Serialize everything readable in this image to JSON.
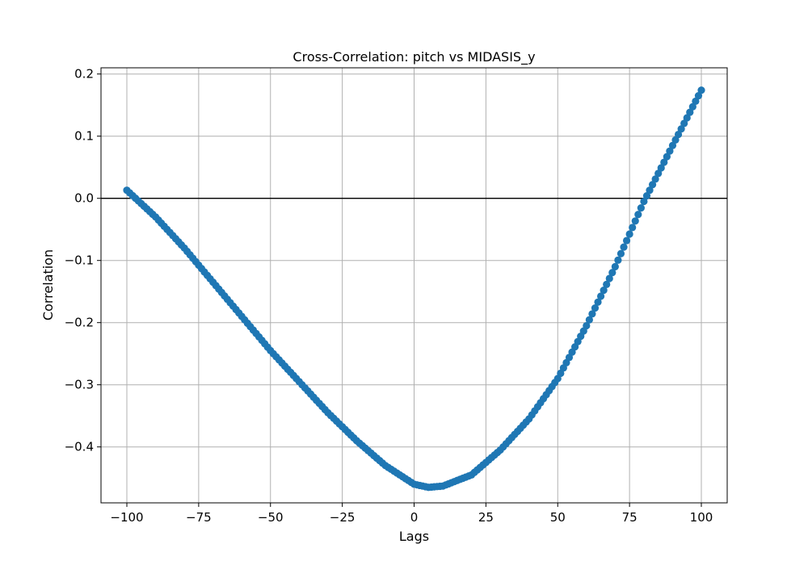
{
  "chart_data": {
    "type": "scatter",
    "title": "Cross-Correlation: pitch vs MIDASIS_y",
    "xlabel": "Lags",
    "ylabel": "Correlation",
    "xlim": [
      -109,
      109
    ],
    "ylim": [
      -0.49,
      0.21
    ],
    "xticks": [
      -100,
      -75,
      -50,
      -25,
      0,
      25,
      50,
      75,
      100
    ],
    "xtick_labels": [
      "−100",
      "−75",
      "−50",
      "−25",
      "0",
      "25",
      "50",
      "75",
      "100"
    ],
    "yticks": [
      -0.4,
      -0.3,
      -0.2,
      -0.1,
      0.0,
      0.1,
      0.2
    ],
    "ytick_labels": [
      "−0.4",
      "−0.3",
      "−0.2",
      "−0.1",
      "0.0",
      "0.1",
      "0.2"
    ],
    "grid": true,
    "reference_line_y": 0,
    "marker_color": "#1f77b4",
    "reference_line_color": "#000000",
    "series": [
      {
        "x_start": -100,
        "x_step": 1,
        "key_points": [
          [
            -100,
            0.013
          ],
          [
            -90,
            -0.03
          ],
          [
            -80,
            -0.08
          ],
          [
            -70,
            -0.135
          ],
          [
            -60,
            -0.19
          ],
          [
            -50,
            -0.245
          ],
          [
            -40,
            -0.295
          ],
          [
            -30,
            -0.345
          ],
          [
            -20,
            -0.39
          ],
          [
            -10,
            -0.43
          ],
          [
            0,
            -0.46
          ],
          [
            5,
            -0.465
          ],
          [
            10,
            -0.463
          ],
          [
            20,
            -0.445
          ],
          [
            30,
            -0.405
          ],
          [
            40,
            -0.355
          ],
          [
            50,
            -0.29
          ],
          [
            60,
            -0.205
          ],
          [
            70,
            -0.11
          ],
          [
            80,
            -0.005
          ],
          [
            90,
            0.085
          ],
          [
            100,
            0.174
          ]
        ]
      }
    ]
  }
}
